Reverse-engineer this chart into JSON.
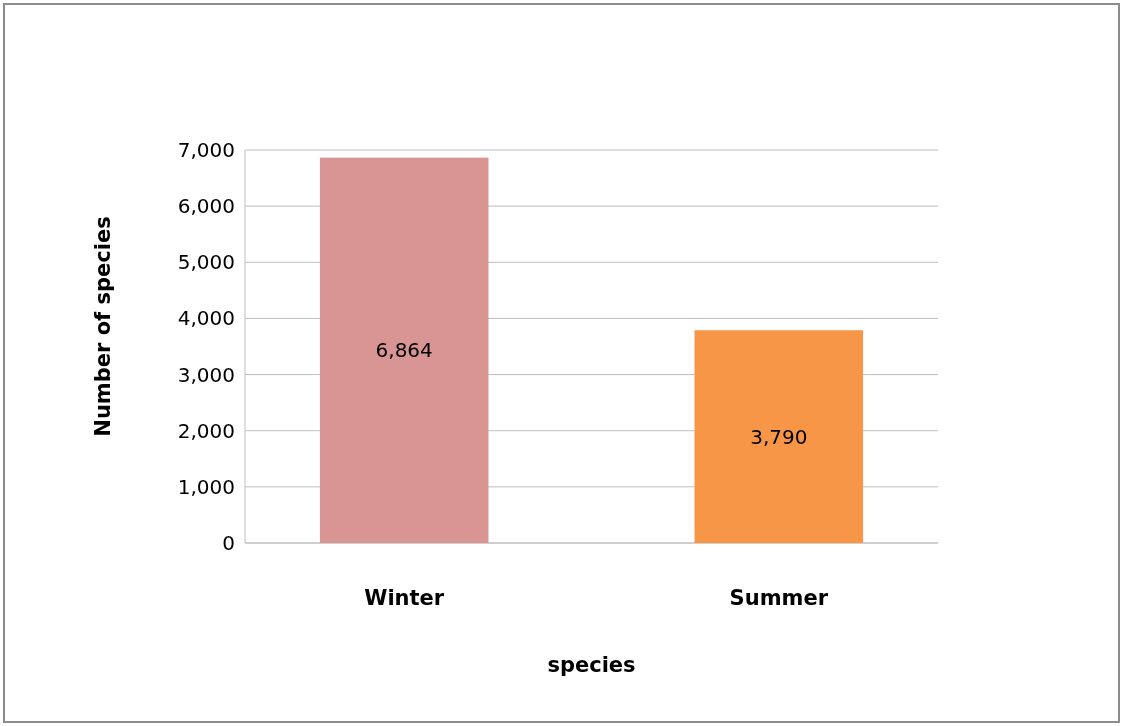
{
  "chart_data": {
    "type": "bar",
    "xlabel": "species",
    "ylabel": "Number of species",
    "categories": [
      "Winter",
      "Summer"
    ],
    "values": [
      6864,
      3790
    ],
    "colors": [
      "#d99594",
      "#f79646"
    ],
    "value_labels": [
      "6,864",
      "3,790"
    ],
    "ylim": [
      0,
      7000
    ],
    "yticks": [
      {
        "value": 0,
        "label": "0"
      },
      {
        "value": 1000,
        "label": "1,000"
      },
      {
        "value": 2000,
        "label": "2,000"
      },
      {
        "value": 3000,
        "label": "3,000"
      },
      {
        "value": 4000,
        "label": "4,000"
      },
      {
        "value": 5000,
        "label": "5,000"
      },
      {
        "value": 6000,
        "label": "6,000"
      },
      {
        "value": 7000,
        "label": "7,000"
      }
    ],
    "grid": "y"
  }
}
